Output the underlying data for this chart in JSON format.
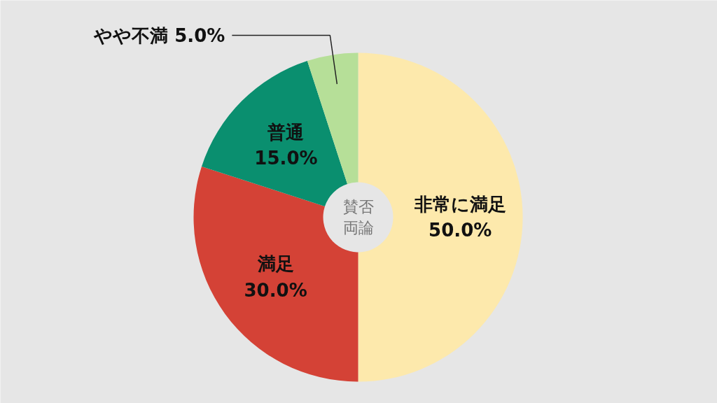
{
  "chart_data": {
    "type": "donut",
    "title": "賛否両論",
    "categories": [
      "非常に満足",
      "満足",
      "普通",
      "やや不満"
    ],
    "values": [
      50,
      30,
      15,
      5
    ],
    "value_labels": [
      "50.0%",
      "30.0%",
      "15.0%",
      "5.0%"
    ],
    "colors": [
      "#fde9ac",
      "#d44236",
      "#0a8f6f",
      "#b6df98"
    ]
  }
}
